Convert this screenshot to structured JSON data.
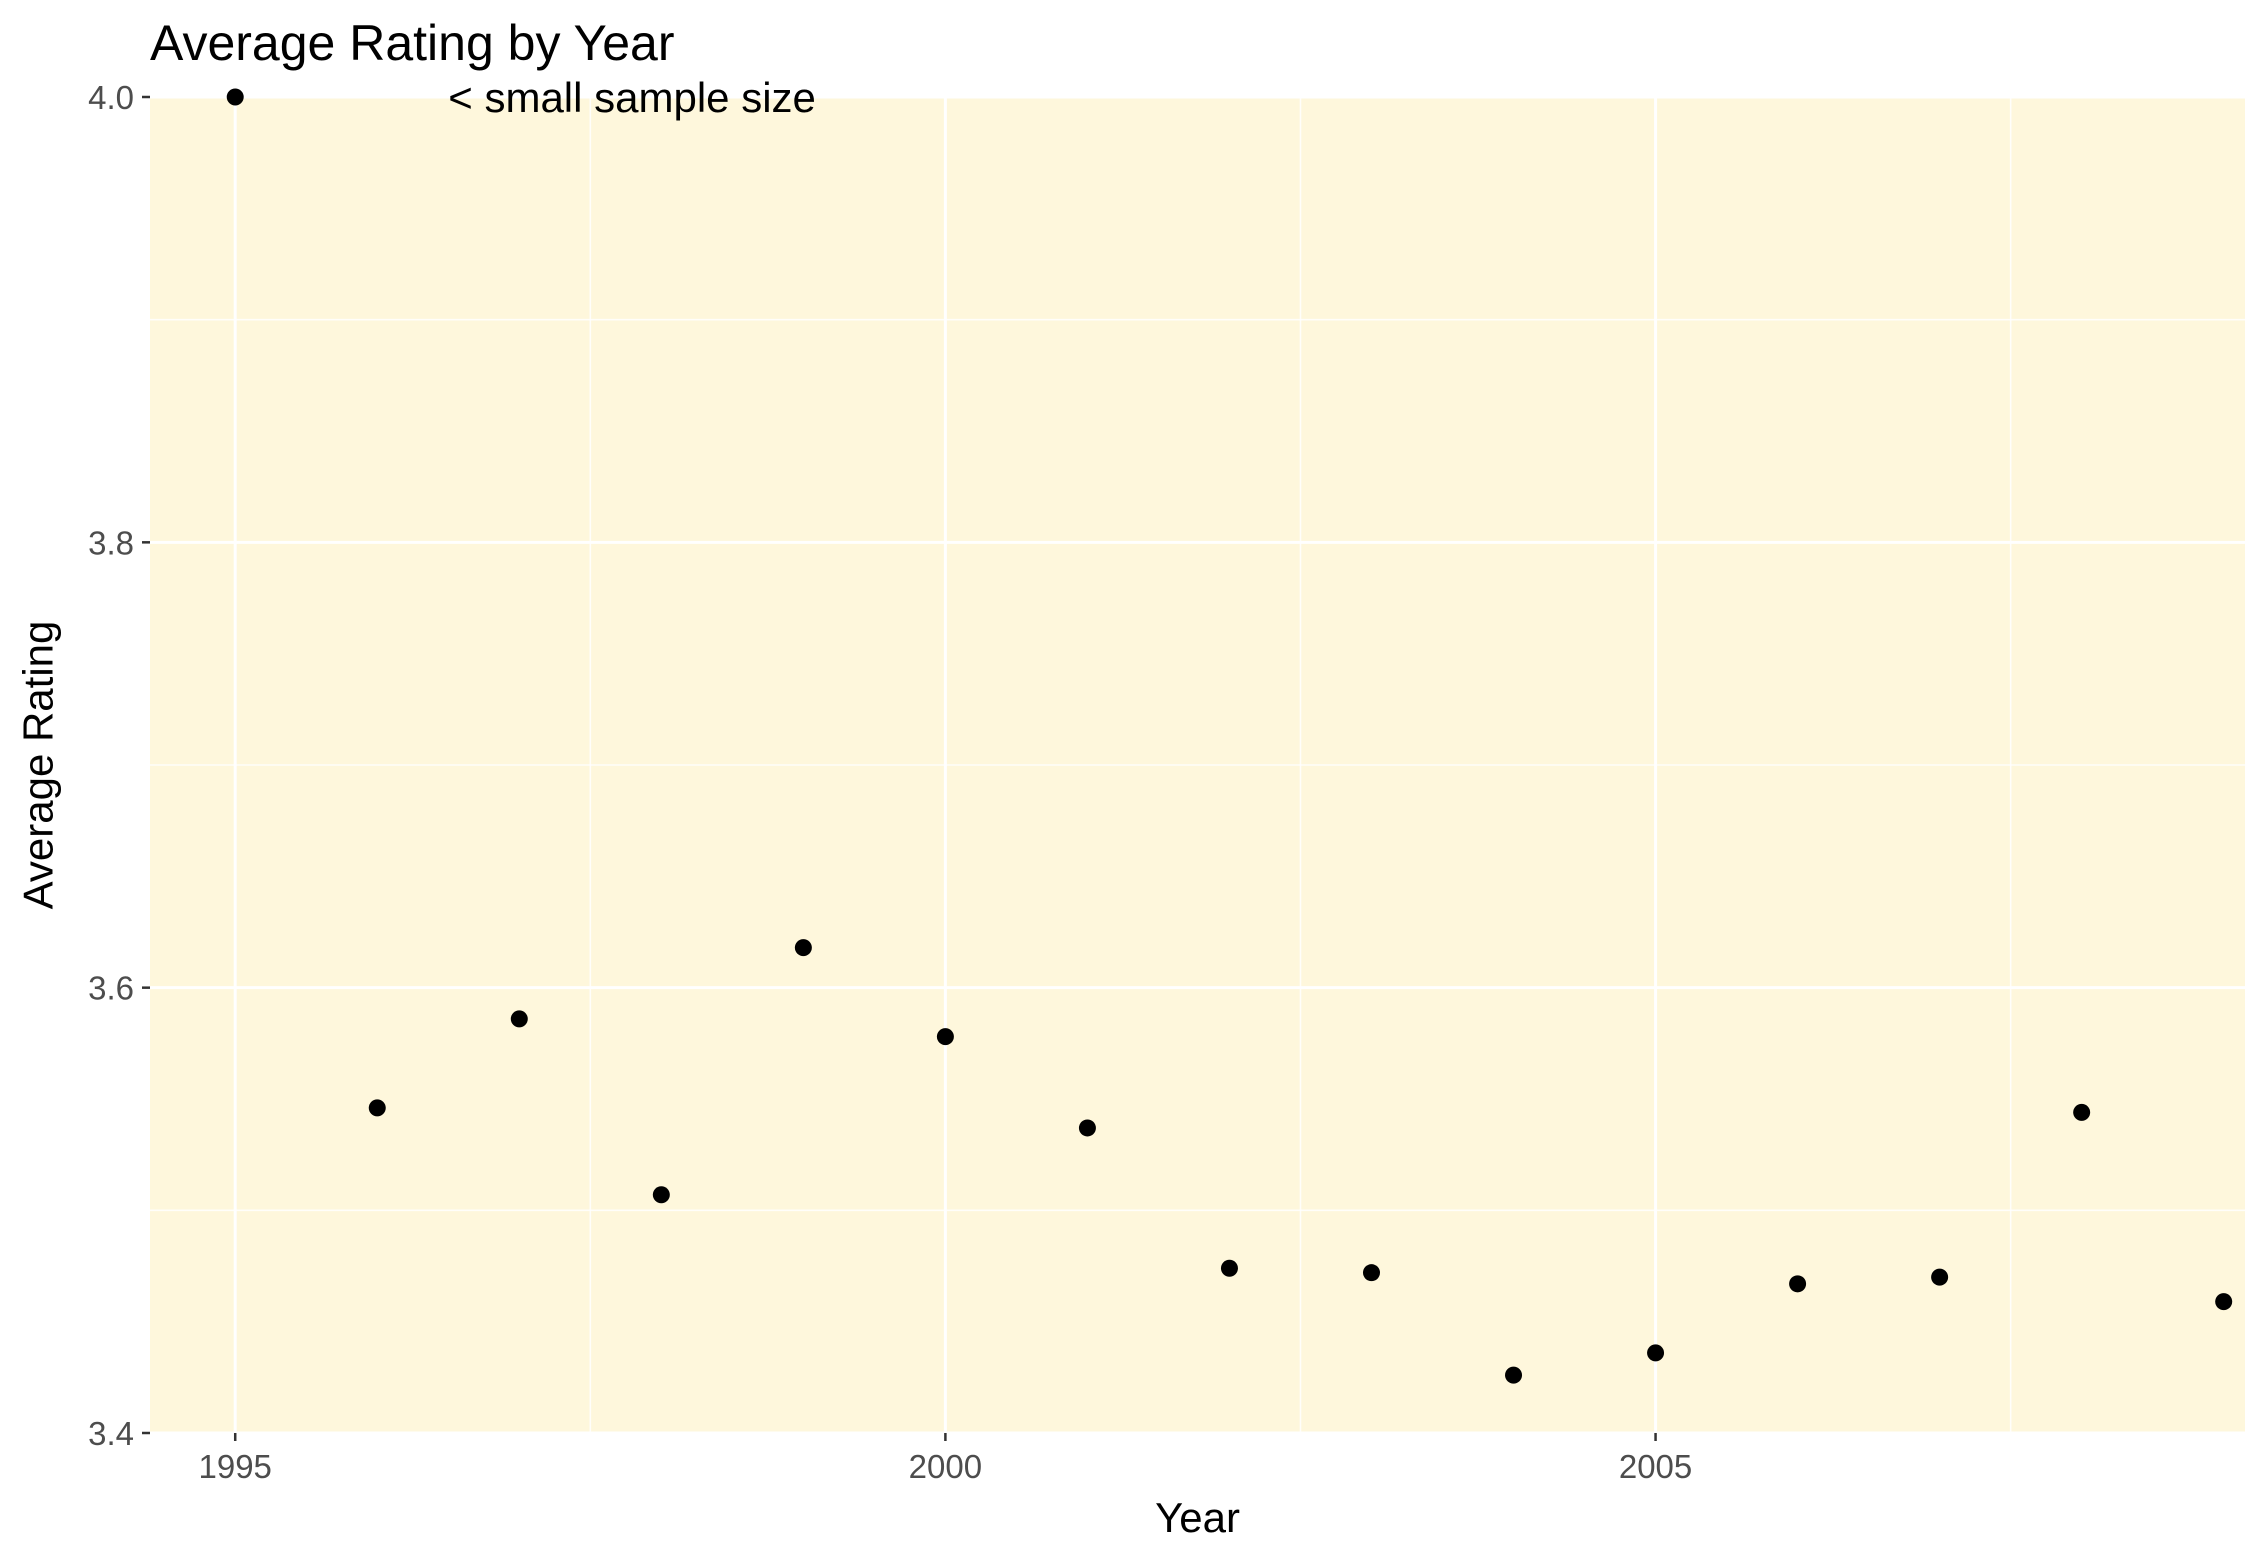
{
  "chart_data": {
    "type": "scatter",
    "title": "Average Rating by Year",
    "xlabel": "Year",
    "ylabel": "Average Rating",
    "xlim": [
      1994.4,
      2009.15
    ],
    "ylim": [
      3.4,
      4.0
    ],
    "x_ticks": [
      1995,
      2000,
      2005
    ],
    "x_tick_labels": [
      "1995",
      "2000",
      "2005"
    ],
    "y_ticks": [
      3.4,
      3.6,
      3.8,
      4.0
    ],
    "y_tick_labels": [
      "3.4",
      "3.6",
      "3.8",
      "4.0"
    ],
    "grid": true,
    "legend": "none",
    "colors": {
      "panel_background": "#fef7dc",
      "grid": "#ffffff",
      "point": "#000000",
      "tick_text": "#4d4d4d",
      "text": "#000000"
    },
    "series": [
      {
        "x": [
          1995,
          1996,
          1997,
          1998,
          1999,
          2000,
          2001,
          2002,
          2003,
          2004,
          2005,
          2006,
          2007,
          2008,
          2009
        ],
        "y": [
          4.0,
          3.546,
          3.586,
          3.507,
          3.618,
          3.578,
          3.537,
          3.474,
          3.472,
          3.426,
          3.436,
          3.467,
          3.47,
          3.544,
          3.459
        ]
      }
    ],
    "annotations": [
      {
        "text": "< small sample size",
        "x": 1996.5,
        "y": 4.0
      }
    ]
  }
}
